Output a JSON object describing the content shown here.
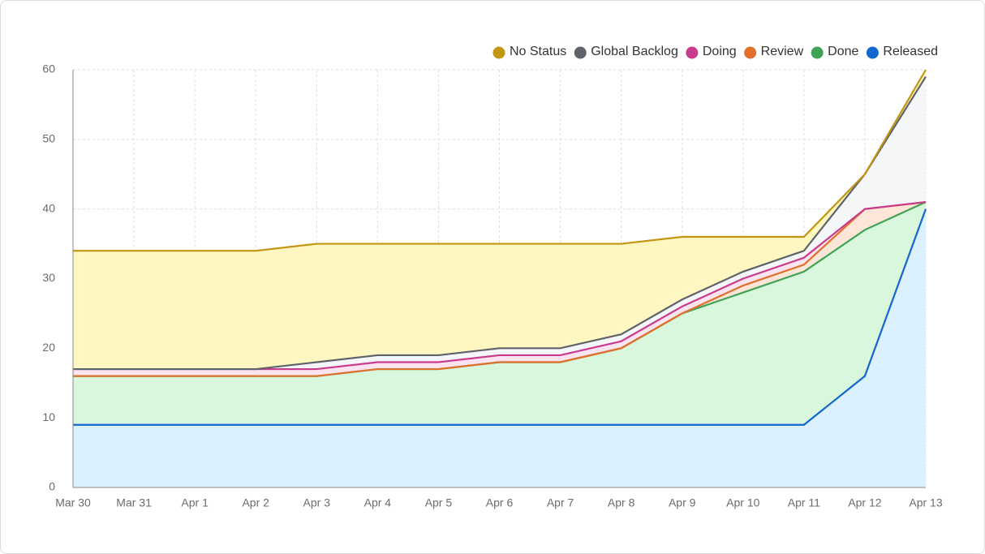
{
  "chart_data": {
    "type": "stacked_area",
    "categories": [
      "Mar 30",
      "Mar 31",
      "Apr 1",
      "Apr 2",
      "Apr 3",
      "Apr 4",
      "Apr 5",
      "Apr 6",
      "Apr 7",
      "Apr 8",
      "Apr 9",
      "Apr 10",
      "Apr 11",
      "Apr 12",
      "Apr 13"
    ],
    "series": [
      {
        "name": "No Status",
        "color": "#c29513",
        "fill": "#fff7c2",
        "values": [
          17,
          17,
          17,
          17,
          17,
          16,
          16,
          15,
          15,
          13,
          9,
          5,
          2,
          0,
          1
        ]
      },
      {
        "name": "Global Backlog",
        "color": "#5e6369",
        "fill": "#f5f6f8",
        "values": [
          0,
          0,
          0,
          0,
          1,
          1,
          1,
          1,
          1,
          1,
          1,
          1,
          1,
          5,
          18
        ]
      },
      {
        "name": "Doing",
        "color": "#c93b8c",
        "fill": "#fbe3f0",
        "values": [
          1,
          1,
          1,
          1,
          1,
          1,
          1,
          1,
          1,
          1,
          1,
          1,
          1,
          0,
          0
        ]
      },
      {
        "name": "Review",
        "color": "#e0702c",
        "fill": "#fde6d8",
        "values": [
          0,
          0,
          0,
          0,
          0,
          0,
          0,
          0,
          0,
          0,
          0,
          1,
          1,
          3,
          0
        ]
      },
      {
        "name": "Done",
        "color": "#3ea355",
        "fill": "#d9f7dc",
        "values": [
          7,
          7,
          7,
          7,
          7,
          8,
          8,
          9,
          9,
          11,
          16,
          19,
          22,
          21,
          1
        ]
      },
      {
        "name": "Released",
        "color": "#1466d0",
        "fill": "#dbf1ff",
        "values": [
          9,
          9,
          9,
          9,
          9,
          9,
          9,
          9,
          9,
          9,
          9,
          9,
          9,
          16,
          40
        ]
      }
    ],
    "ylim": [
      0,
      60
    ],
    "yticks": [
      0,
      10,
      20,
      30,
      40,
      50,
      60
    ],
    "grid": true,
    "legend": "top-right"
  }
}
